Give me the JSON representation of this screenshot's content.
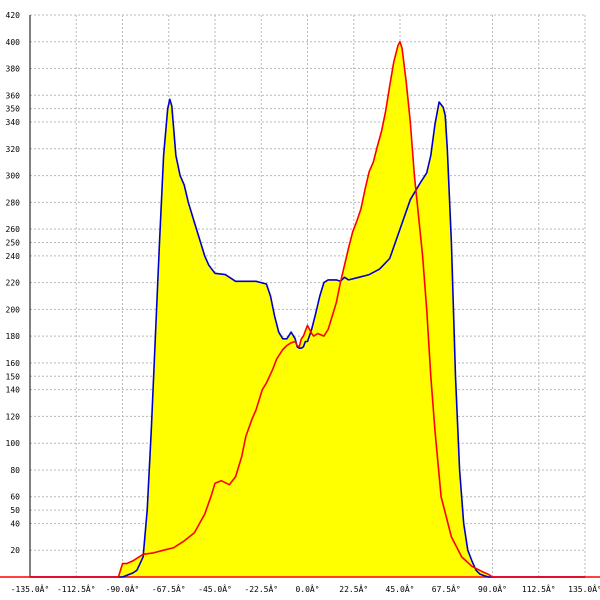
{
  "chart_data": {
    "type": "area",
    "title": "",
    "xlabel": "",
    "ylabel": "",
    "xlim": [
      -135,
      135
    ],
    "ylim": [
      0,
      420
    ],
    "grid": true,
    "x_ticks": [
      -135,
      -112.5,
      -90,
      -67.5,
      -45,
      -22.5,
      0,
      22.5,
      45,
      67.5,
      90,
      112.5,
      135
    ],
    "x_tick_labels": [
      "-135.0Â°",
      "-112.5Â°",
      "-90.0Â°",
      "-67.5Â°",
      "-45.0Â°",
      "-22.5Â°",
      "0.0Â°",
      "22.5Â°",
      "45.0Â°",
      "67.5Â°",
      "90.0Â°",
      "112.5Â°",
      "135.0Â°"
    ],
    "y_ticks": [
      20,
      40,
      50,
      60,
      80,
      100,
      120,
      140,
      150,
      160,
      180,
      200,
      220,
      240,
      250,
      260,
      280,
      300,
      320,
      340,
      350,
      360,
      380,
      400,
      420
    ],
    "y_tick_labels": [
      "20",
      "40",
      "50",
      "60",
      "80",
      "100",
      "120",
      "140",
      "150",
      "160",
      "180",
      "200",
      "220",
      "240",
      "250",
      "260",
      "280",
      "300",
      "320",
      "340",
      "350",
      "360",
      "380",
      "400",
      "420"
    ],
    "series": [
      {
        "color": "#0000cc",
        "fill": "#ffff00",
        "x": [
          -135,
          -90,
          -85,
          -83,
          -80,
          -78,
          -76,
          -74,
          -72,
          -70,
          -68,
          -67,
          -66,
          -64,
          -62,
          -60,
          -58,
          -55,
          -52,
          -50,
          -48,
          -45,
          -40,
          -35,
          -30,
          -25,
          -20,
          -18,
          -16,
          -14,
          -12,
          -10,
          -8,
          -6,
          -5,
          -4,
          -3,
          -2,
          -1,
          0,
          2,
          4,
          6,
          8,
          10,
          12,
          14,
          16,
          18,
          20,
          25,
          30,
          35,
          40,
          45,
          50,
          55,
          58,
          60,
          62,
          64,
          66,
          67,
          68,
          70,
          72,
          74,
          76,
          78,
          80,
          82,
          84,
          86,
          88,
          90,
          135
        ],
        "values": [
          0,
          0,
          3,
          5,
          15,
          50,
          110,
          180,
          250,
          315,
          350,
          357,
          352,
          315,
          300,
          293,
          280,
          265,
          250,
          240,
          233,
          227,
          226,
          221,
          221,
          221,
          219,
          210,
          195,
          183,
          178,
          178,
          183,
          178,
          172,
          171,
          171,
          172,
          176,
          176,
          185,
          197,
          210,
          220,
          222,
          222,
          222,
          221,
          224,
          222,
          224,
          226,
          230,
          238,
          260,
          282,
          295,
          302,
          315,
          338,
          355,
          351,
          345,
          320,
          250,
          150,
          80,
          40,
          20,
          12,
          5,
          2,
          1,
          0,
          0,
          0
        ]
      },
      {
        "color": "#ff0000",
        "fill": "#ffff00",
        "x": [
          -135,
          -92,
          -90,
          -88,
          -85,
          -80,
          -75,
          -70,
          -65,
          -60,
          -55,
          -50,
          -47,
          -45,
          -42,
          -38,
          -35,
          -32,
          -30,
          -27,
          -25,
          -22,
          -20,
          -17,
          -15,
          -12,
          -10,
          -8,
          -6,
          -5,
          -4,
          -3,
          -2,
          -1,
          0,
          1,
          2,
          3,
          5,
          8,
          10,
          12,
          14,
          16,
          18,
          20,
          22,
          24,
          26,
          28,
          30,
          32,
          34,
          36,
          38,
          40,
          42,
          44,
          45,
          46,
          48,
          50,
          52,
          54,
          56,
          58,
          60,
          62,
          65,
          70,
          75,
          80,
          85,
          88,
          90,
          135
        ],
        "values": [
          0,
          0,
          10,
          10,
          12,
          17,
          18,
          20,
          22,
          27,
          33,
          47,
          60,
          70,
          72,
          69,
          75,
          90,
          105,
          118,
          125,
          140,
          145,
          155,
          163,
          170,
          173,
          175,
          176,
          173,
          172,
          178,
          180,
          184,
          188,
          185,
          182,
          180,
          182,
          180,
          185,
          195,
          205,
          220,
          233,
          246,
          258,
          266,
          275,
          290,
          303,
          310,
          322,
          333,
          348,
          367,
          385,
          397,
          400,
          395,
          370,
          340,
          300,
          270,
          240,
          200,
          150,
          110,
          60,
          30,
          15,
          8,
          4,
          2,
          0,
          0
        ]
      }
    ]
  }
}
